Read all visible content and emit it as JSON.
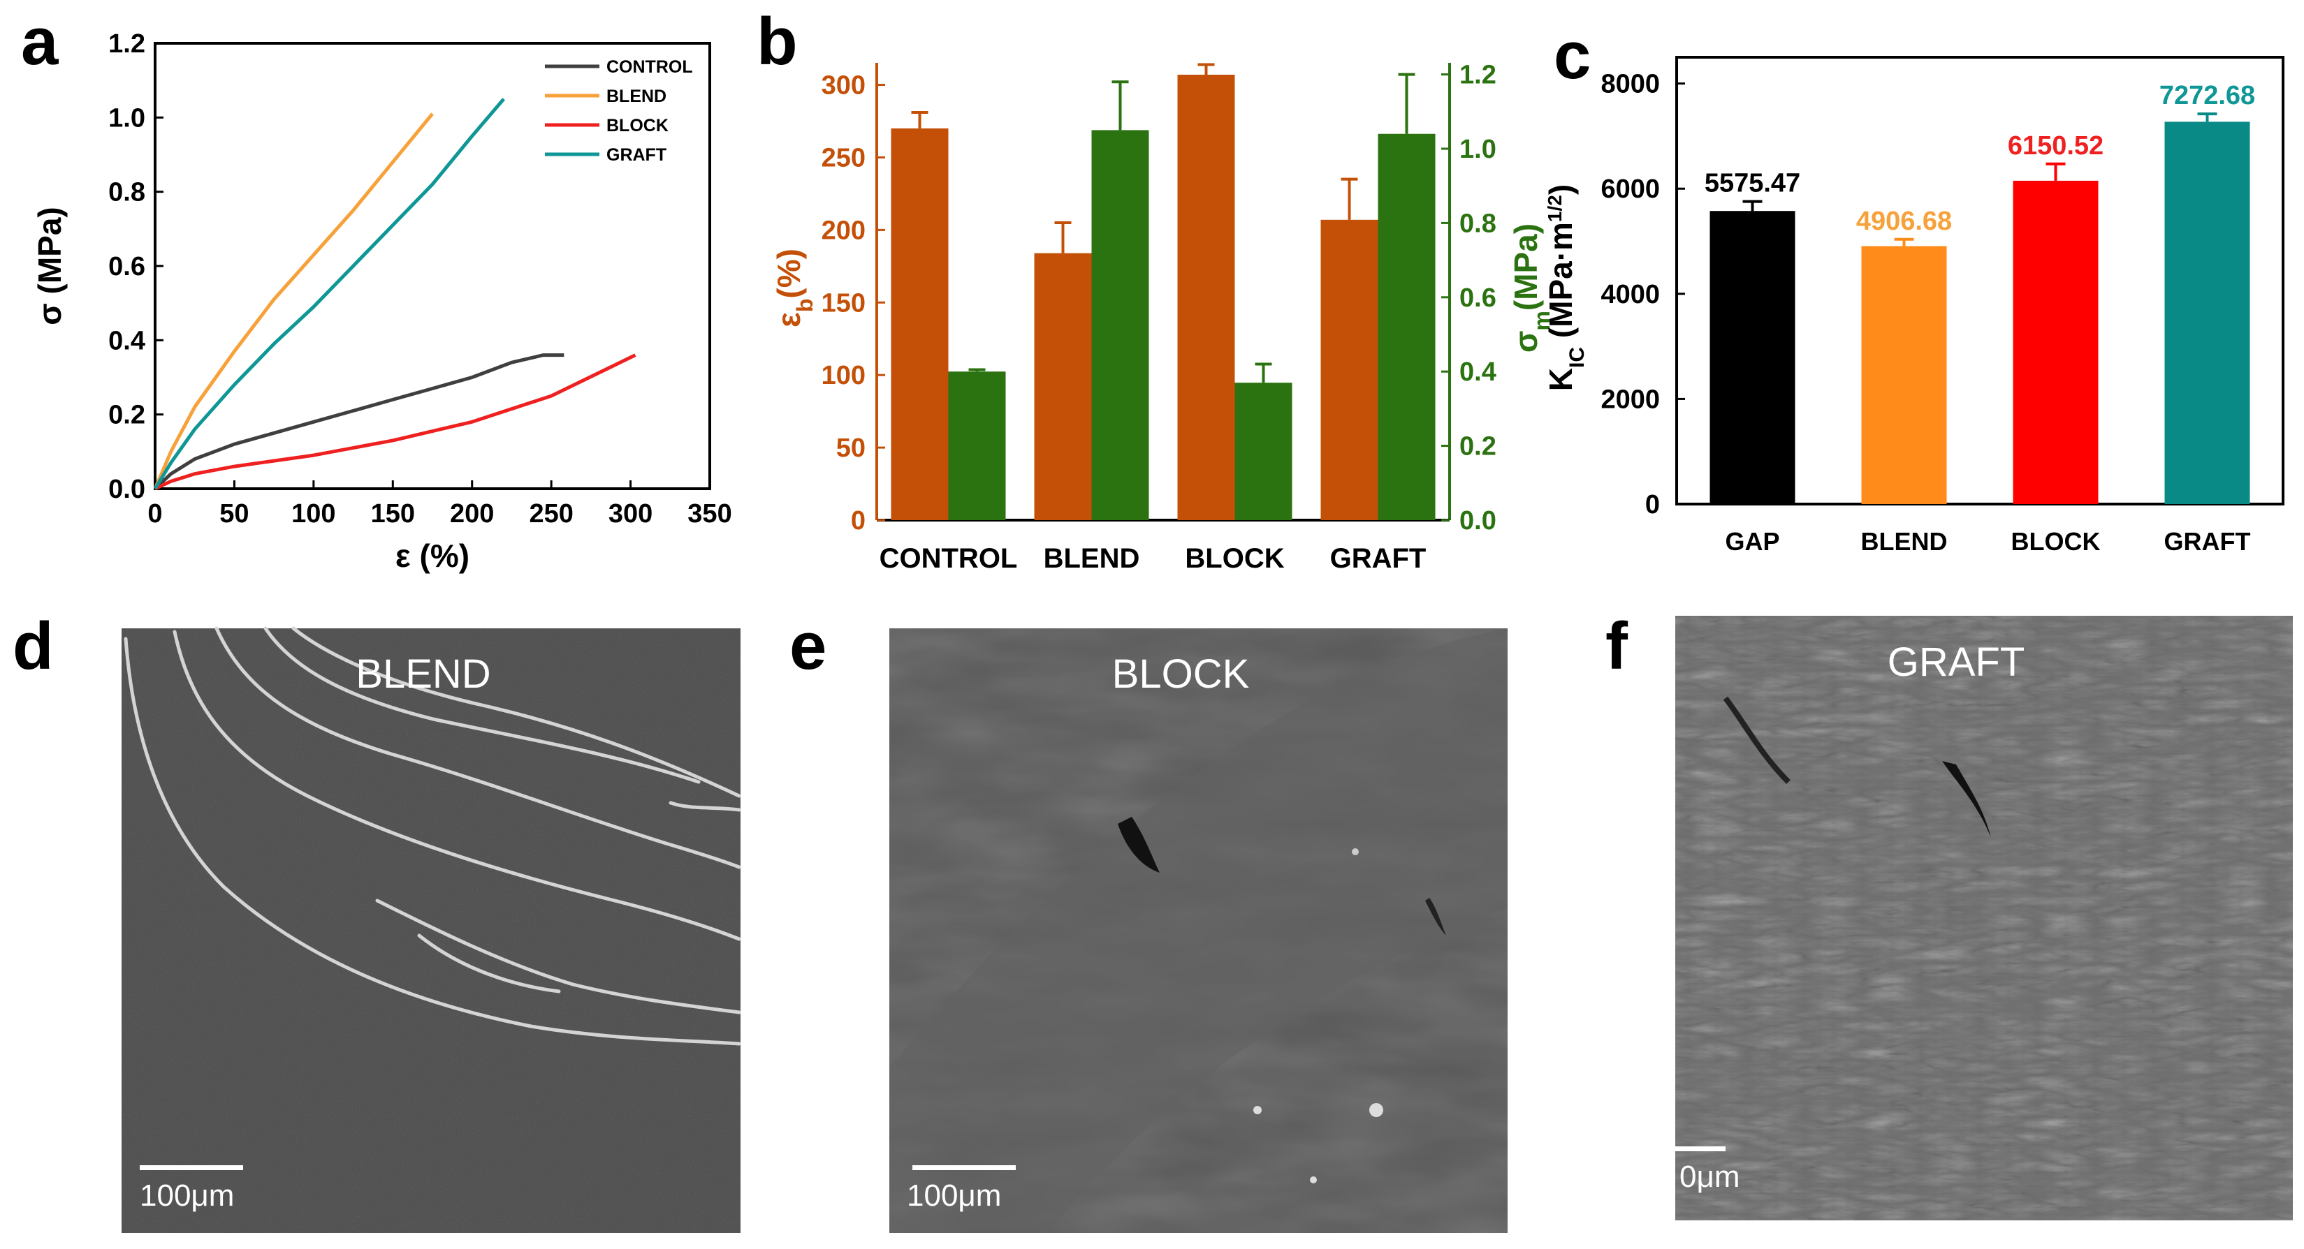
{
  "panels": {
    "a": "a",
    "b": "b",
    "c": "c",
    "d": "d",
    "e": "e",
    "f": "f"
  },
  "colors": {
    "control": "#3f3f3f",
    "blend": "#f7a13a",
    "block": "#ef2020",
    "graft": "#0f9696",
    "eps_bar": "#c45008",
    "sigma_bar": "#2b7210",
    "gap_bar": "#000000",
    "blend_bar": "#ff8c1a",
    "block_bar": "#ff0000",
    "graft_bar": "#0a8a86"
  },
  "chart_data": [
    {
      "id": "a",
      "type": "line",
      "title": "",
      "xlabel": "ε (%)",
      "ylabel": "σ (MPa)",
      "xlim": [
        0,
        350
      ],
      "ylim": [
        0,
        1.2
      ],
      "xticks": [
        0,
        50,
        100,
        150,
        200,
        250,
        300,
        350
      ],
      "yticks": [
        0.0,
        0.2,
        0.4,
        0.6,
        0.8,
        1.0,
        1.2
      ],
      "xtick_labels": [
        "0",
        "50",
        "100",
        "150",
        "200",
        "250",
        "300",
        "350"
      ],
      "ytick_labels": [
        "0.0",
        "0.2",
        "0.4",
        "0.6",
        "0.8",
        "1.0",
        "1.2"
      ],
      "legend": "top-right",
      "series": [
        {
          "name": "CONTROL",
          "color": "#3f3f3f",
          "x": [
            0,
            10,
            25,
            50,
            75,
            100,
            125,
            150,
            175,
            200,
            225,
            245,
            258
          ],
          "y": [
            0,
            0.04,
            0.08,
            0.12,
            0.15,
            0.18,
            0.21,
            0.24,
            0.27,
            0.3,
            0.34,
            0.36,
            0.36
          ]
        },
        {
          "name": "BLEND",
          "color": "#f7a13a",
          "x": [
            0,
            10,
            25,
            50,
            75,
            100,
            125,
            150,
            175
          ],
          "y": [
            0,
            0.1,
            0.22,
            0.37,
            0.51,
            0.63,
            0.75,
            0.88,
            1.01
          ]
        },
        {
          "name": "BLOCK",
          "color": "#ef2020",
          "x": [
            0,
            10,
            25,
            50,
            100,
            150,
            200,
            250,
            303
          ],
          "y": [
            0,
            0.02,
            0.04,
            0.06,
            0.09,
            0.13,
            0.18,
            0.25,
            0.36
          ]
        },
        {
          "name": "GRAFT",
          "color": "#0f9696",
          "x": [
            0,
            10,
            25,
            50,
            75,
            100,
            125,
            150,
            175,
            200,
            220
          ],
          "y": [
            0,
            0.07,
            0.16,
            0.28,
            0.39,
            0.49,
            0.6,
            0.71,
            0.82,
            0.95,
            1.05
          ]
        }
      ]
    },
    {
      "id": "b",
      "type": "bar",
      "title": "",
      "categories": [
        "CONTROL",
        "BLEND",
        "BLOCK",
        "GRAFT"
      ],
      "ylabel_left_main": "ε",
      "ylabel_left_sub": "b",
      "ylabel_left_tail": "(%)",
      "ylabel_right_main": "σ",
      "ylabel_right_sub": "m",
      "ylabel_right_tail": "(MPa)",
      "ylim_left": [
        0,
        320
      ],
      "ylim_right": [
        0,
        1.25
      ],
      "yticks_left": [
        0,
        50,
        100,
        150,
        200,
        250,
        300
      ],
      "yticks_right": [
        0.0,
        0.2,
        0.4,
        0.6,
        0.8,
        1.0,
        1.2
      ],
      "ytick_labels_left": [
        "0",
        "50",
        "100",
        "150",
        "200",
        "250",
        "300"
      ],
      "ytick_labels_right": [
        "0.0",
        "0.2",
        "0.4",
        "0.6",
        "0.8",
        "1.0",
        "1.2"
      ],
      "series": [
        {
          "name": "ε_b (%)",
          "axis": "left",
          "color": "#c45008",
          "values": [
            270,
            184,
            307,
            207
          ],
          "errors": [
            11,
            21,
            7,
            28
          ]
        },
        {
          "name": "σ_m (MPa)",
          "axis": "right",
          "color": "#2b7210",
          "values": [
            0.4,
            1.05,
            0.37,
            1.04
          ],
          "errors": [
            0.005,
            0.13,
            0.05,
            0.16
          ]
        }
      ]
    },
    {
      "id": "c",
      "type": "bar",
      "title": "",
      "categories": [
        "GAP",
        "BLEND",
        "BLOCK",
        "GRAFT"
      ],
      "ylabel_main": "K",
      "ylabel_sub": "IC",
      "ylabel_tail": " (MPa·m",
      "ylabel_sup": "1/2",
      "ylabel_end": ")",
      "ylim": [
        0,
        8500
      ],
      "yticks": [
        0,
        2000,
        4000,
        6000,
        8000
      ],
      "ytick_labels": [
        "0",
        "2000",
        "4000",
        "6000",
        "8000"
      ],
      "values": [
        5575.47,
        4906.68,
        6150.52,
        7272.68
      ],
      "value_labels": [
        "5575.47",
        "4906.68",
        "6150.52",
        "7272.68"
      ],
      "errors": [
        180,
        130,
        320,
        150
      ],
      "colors": [
        "#000000",
        "#ff8c1a",
        "#ff0000",
        "#0a8a86"
      ],
      "label_colors": [
        "#000000",
        "#f7a13a",
        "#ef2020",
        "#0f9696"
      ]
    }
  ],
  "micrographs": {
    "d": {
      "label": "BLEND",
      "scale": "100μm"
    },
    "e": {
      "label": "BLOCK",
      "scale": "100μm"
    },
    "f": {
      "label": "GRAFT",
      "scale": "0μm"
    }
  }
}
